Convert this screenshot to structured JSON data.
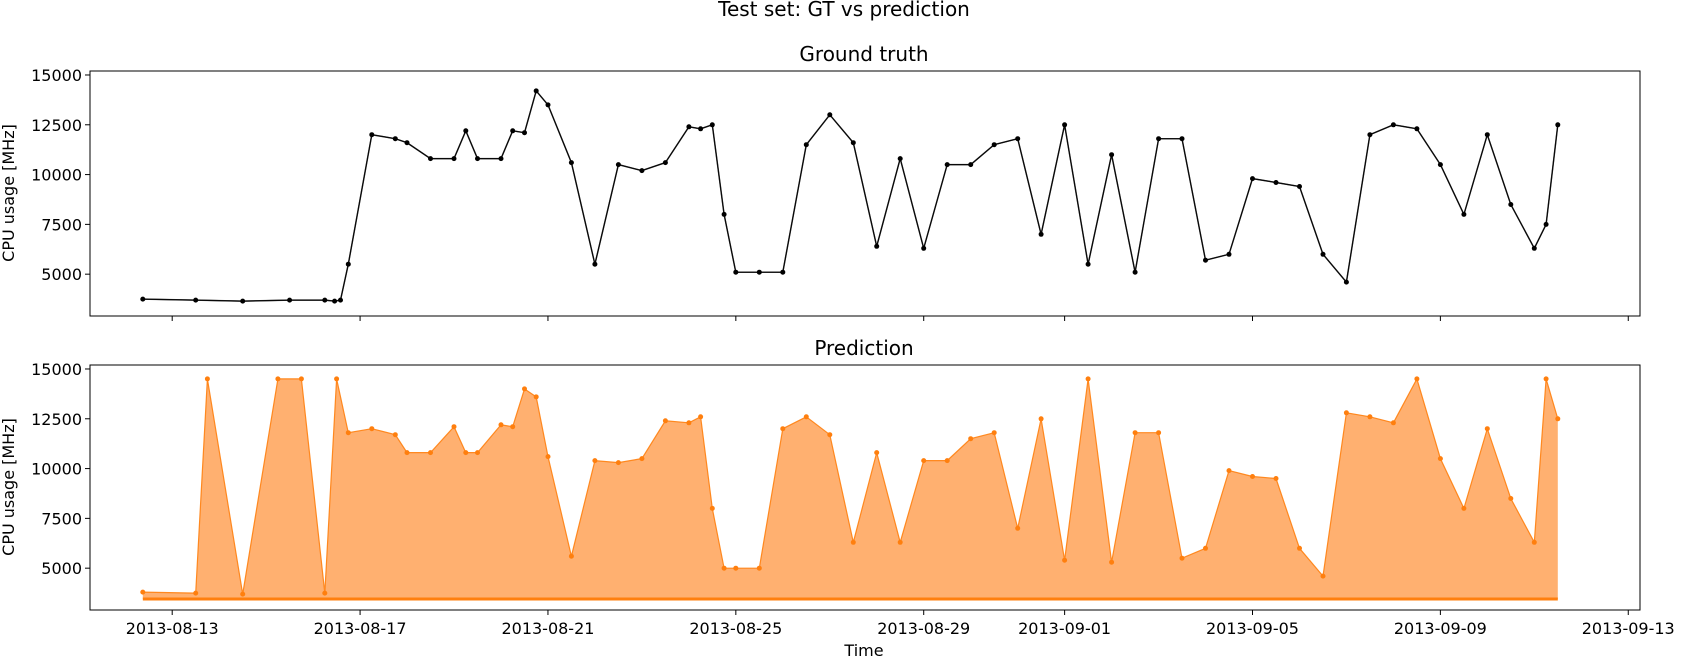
{
  "chart_data": {
    "suptitle": "Test set: GT vs prediction",
    "xlabel": "Time",
    "x_range": [
      "2013-08-11T06:00",
      "2013-09-13T06:00"
    ],
    "x_ticks": [
      "2013-08-13",
      "2013-08-17",
      "2013-08-21",
      "2013-08-25",
      "2013-08-29",
      "2013-09-01",
      "2013-09-05",
      "2013-09-09",
      "2013-09-13"
    ],
    "y_ticks": [
      "5000",
      "7500",
      "10000",
      "12500",
      "15000"
    ],
    "charts": [
      {
        "type": "line",
        "title": "Ground truth",
        "ylabel": "CPU usage [MHz]",
        "ylim": [
          2900,
          15200
        ],
        "color": "#000000",
        "fill_color": "#555555",
        "x": [
          "2013-08-12T09:00",
          "2013-08-13T12:00",
          "2013-08-14T12:00",
          "2013-08-15T12:00",
          "2013-08-16T06:00",
          "2013-08-16T11:00",
          "2013-08-16T14:00",
          "2013-08-16T18:00",
          "2013-08-17T06:00",
          "2013-08-17T18:00",
          "2013-08-18T00:00",
          "2013-08-18T12:00",
          "2013-08-19T00:00",
          "2013-08-19T06:00",
          "2013-08-19T12:00",
          "2013-08-20T00:00",
          "2013-08-20T06:00",
          "2013-08-20T12:00",
          "2013-08-20T18:00",
          "2013-08-21T00:00",
          "2013-08-21T12:00",
          "2013-08-22T00:00",
          "2013-08-22T12:00",
          "2013-08-23T00:00",
          "2013-08-23T12:00",
          "2013-08-24T00:00",
          "2013-08-24T06:00",
          "2013-08-24T12:00",
          "2013-08-24T18:00",
          "2013-08-25T00:00",
          "2013-08-25T12:00",
          "2013-08-26T00:00",
          "2013-08-26T12:00",
          "2013-08-27T00:00",
          "2013-08-27T12:00",
          "2013-08-28T00:00",
          "2013-08-28T12:00",
          "2013-08-29T00:00",
          "2013-08-29T12:00",
          "2013-08-30T00:00",
          "2013-08-30T12:00",
          "2013-08-31T00:00",
          "2013-08-31T12:00",
          "2013-09-01T00:00",
          "2013-09-01T12:00",
          "2013-09-02T00:00",
          "2013-09-02T12:00",
          "2013-09-03T00:00",
          "2013-09-03T12:00",
          "2013-09-04T00:00",
          "2013-09-04T12:00",
          "2013-09-05T00:00",
          "2013-09-05T12:00",
          "2013-09-06T00:00",
          "2013-09-06T12:00",
          "2013-09-07T00:00",
          "2013-09-07T12:00",
          "2013-09-08T00:00",
          "2013-09-08T12:00",
          "2013-09-09T00:00",
          "2013-09-09T12:00",
          "2013-09-10T00:00",
          "2013-09-10T12:00",
          "2013-09-11T00:00",
          "2013-09-11T06:00",
          "2013-09-11T12:00"
        ],
        "values": [
          3750,
          3700,
          3650,
          3700,
          3700,
          3650,
          3700,
          5500,
          12000,
          11800,
          11600,
          10800,
          10800,
          12200,
          10800,
          10800,
          12200,
          12100,
          14200,
          13500,
          10600,
          5500,
          10500,
          10200,
          10600,
          12400,
          12300,
          12500,
          8000,
          5100,
          5100,
          5100,
          11500,
          13000,
          11600,
          6400,
          10800,
          6300,
          10500,
          10500,
          11500,
          11800,
          7000,
          12500,
          5500,
          11000,
          5100,
          11800,
          11800,
          5700,
          6000,
          9800,
          9600,
          9400,
          6000,
          4600,
          12000,
          12500,
          12300,
          10500,
          8000,
          12000,
          8500,
          6300,
          7500,
          12500
        ]
      },
      {
        "type": "area",
        "title": "Prediction",
        "ylabel": "CPU usage [MHz]",
        "ylim": [
          2900,
          15200
        ],
        "color": "#ff7f0e",
        "fill_color": "#ffb070",
        "baseline": 3450,
        "x": [
          "2013-08-12T09:00",
          "2013-08-13T12:00",
          "2013-08-13T18:00",
          "2013-08-14T12:00",
          "2013-08-15T06:00",
          "2013-08-15T18:00",
          "2013-08-16T06:00",
          "2013-08-16T12:00",
          "2013-08-16T18:00",
          "2013-08-17T06:00",
          "2013-08-17T18:00",
          "2013-08-18T00:00",
          "2013-08-18T12:00",
          "2013-08-19T00:00",
          "2013-08-19T06:00",
          "2013-08-19T12:00",
          "2013-08-20T00:00",
          "2013-08-20T06:00",
          "2013-08-20T12:00",
          "2013-08-20T18:00",
          "2013-08-21T00:00",
          "2013-08-21T12:00",
          "2013-08-22T00:00",
          "2013-08-22T12:00",
          "2013-08-23T00:00",
          "2013-08-23T12:00",
          "2013-08-24T00:00",
          "2013-08-24T06:00",
          "2013-08-24T12:00",
          "2013-08-24T18:00",
          "2013-08-25T00:00",
          "2013-08-25T12:00",
          "2013-08-26T00:00",
          "2013-08-26T12:00",
          "2013-08-27T00:00",
          "2013-08-27T12:00",
          "2013-08-28T00:00",
          "2013-08-28T12:00",
          "2013-08-29T00:00",
          "2013-08-29T12:00",
          "2013-08-30T00:00",
          "2013-08-30T12:00",
          "2013-08-31T00:00",
          "2013-08-31T12:00",
          "2013-09-01T00:00",
          "2013-09-01T12:00",
          "2013-09-02T00:00",
          "2013-09-02T12:00",
          "2013-09-03T00:00",
          "2013-09-03T12:00",
          "2013-09-04T00:00",
          "2013-09-04T12:00",
          "2013-09-05T00:00",
          "2013-09-05T12:00",
          "2013-09-06T00:00",
          "2013-09-06T12:00",
          "2013-09-07T00:00",
          "2013-09-07T12:00",
          "2013-09-08T00:00",
          "2013-09-08T12:00",
          "2013-09-09T00:00",
          "2013-09-09T12:00",
          "2013-09-10T00:00",
          "2013-09-10T12:00",
          "2013-09-11T00:00",
          "2013-09-11T06:00",
          "2013-09-11T12:00"
        ],
        "values": [
          3800,
          3750,
          14500,
          3700,
          14500,
          14500,
          3750,
          14500,
          11800,
          12000,
          11700,
          10800,
          10800,
          12100,
          10800,
          10800,
          12200,
          12100,
          14000,
          13600,
          10600,
          5600,
          10400,
          10300,
          10500,
          12400,
          12300,
          12600,
          8000,
          5000,
          5000,
          5000,
          12000,
          12600,
          11700,
          6300,
          10800,
          6300,
          10400,
          10400,
          11500,
          11800,
          7000,
          12500,
          5400,
          14500,
          5300,
          11800,
          11800,
          5500,
          6000,
          9900,
          9600,
          9500,
          6000,
          4600,
          12800,
          12600,
          12300,
          14500,
          10500,
          8000,
          12000,
          8500,
          6300,
          14500,
          12500
        ]
      }
    ]
  }
}
